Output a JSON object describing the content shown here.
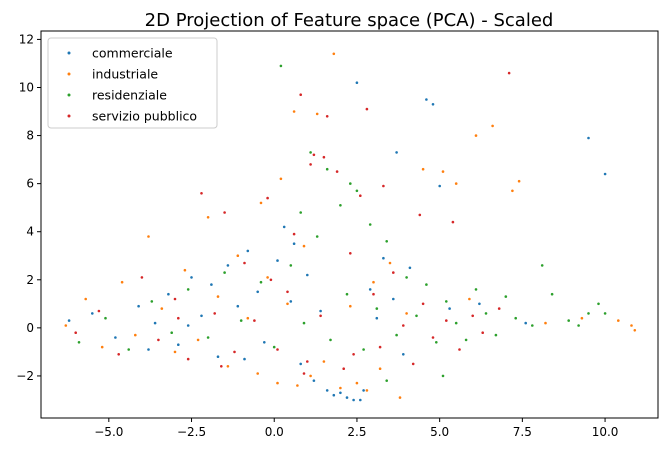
{
  "chart_data": {
    "type": "scatter",
    "title": "2D Projection of Feature space (PCA) - Scaled",
    "xlabel": "",
    "ylabel": "",
    "xlim": [
      -7.05,
      11.6
    ],
    "ylim": [
      -3.75,
      12.35
    ],
    "xticks": [
      -5.0,
      -2.5,
      0.0,
      2.5,
      5.0,
      7.5,
      10.0
    ],
    "xtick_labels": [
      "−5.0",
      "−2.5",
      "0.0",
      "2.5",
      "5.0",
      "7.5",
      "10.0"
    ],
    "yticks": [
      -2,
      0,
      2,
      4,
      6,
      8,
      10,
      12
    ],
    "ytick_labels": [
      "−2",
      "0",
      "2",
      "4",
      "6",
      "8",
      "10",
      "12"
    ],
    "grid": false,
    "legend_position": "top-left",
    "series": [
      {
        "name": "commerciale",
        "color": "#1f77b4",
        "points": [
          [
            -6.2,
            0.3
          ],
          [
            -5.5,
            0.6
          ],
          [
            -4.8,
            -0.4
          ],
          [
            -4.1,
            0.9
          ],
          [
            -3.6,
            0.2
          ],
          [
            -3.2,
            1.4
          ],
          [
            -2.9,
            -0.7
          ],
          [
            -2.5,
            2.1
          ],
          [
            -2.2,
            0.5
          ],
          [
            -1.9,
            1.8
          ],
          [
            -1.7,
            -1.2
          ],
          [
            -1.4,
            2.6
          ],
          [
            -1.1,
            0.9
          ],
          [
            -0.8,
            3.2
          ],
          [
            -0.5,
            1.5
          ],
          [
            -0.3,
            -0.6
          ],
          [
            0.1,
            2.8
          ],
          [
            0.3,
            4.2
          ],
          [
            0.5,
            1.1
          ],
          [
            0.8,
            -1.5
          ],
          [
            1.0,
            2.2
          ],
          [
            1.2,
            -2.2
          ],
          [
            1.4,
            0.7
          ],
          [
            1.6,
            -2.6
          ],
          [
            1.8,
            -2.8
          ],
          [
            2.0,
            -2.7
          ],
          [
            2.2,
            -2.9
          ],
          [
            2.4,
            -3.0
          ],
          [
            2.6,
            -3.0
          ],
          [
            2.7,
            -2.6
          ],
          [
            2.9,
            1.6
          ],
          [
            3.1,
            0.4
          ],
          [
            3.3,
            2.9
          ],
          [
            3.6,
            1.2
          ],
          [
            3.7,
            7.3
          ],
          [
            3.9,
            -1.1
          ],
          [
            4.1,
            2.5
          ],
          [
            4.6,
            9.5
          ],
          [
            4.8,
            9.3
          ],
          [
            5.0,
            5.9
          ],
          [
            5.3,
            0.8
          ],
          [
            6.2,
            1.0
          ],
          [
            7.6,
            0.2
          ],
          [
            9.5,
            7.9
          ],
          [
            10.0,
            6.4
          ],
          [
            2.5,
            10.2
          ],
          [
            -3.8,
            -0.9
          ],
          [
            -2.6,
            0.1
          ],
          [
            -0.9,
            -1.3
          ],
          [
            0.6,
            3.5
          ]
        ]
      },
      {
        "name": "industriale",
        "color": "#ff7f0e",
        "points": [
          [
            -6.3,
            0.1
          ],
          [
            -5.7,
            1.2
          ],
          [
            -5.2,
            -0.8
          ],
          [
            -4.6,
            1.9
          ],
          [
            -4.2,
            -0.3
          ],
          [
            -3.8,
            3.8
          ],
          [
            -3.4,
            0.8
          ],
          [
            -3.0,
            -1.0
          ],
          [
            -2.7,
            2.4
          ],
          [
            -2.3,
            -0.5
          ],
          [
            -2.0,
            4.6
          ],
          [
            -1.7,
            1.3
          ],
          [
            -1.4,
            -1.6
          ],
          [
            -1.1,
            3.0
          ],
          [
            -0.8,
            0.4
          ],
          [
            -0.5,
            -1.9
          ],
          [
            -0.2,
            2.1
          ],
          [
            0.1,
            -2.3
          ],
          [
            0.4,
            1.0
          ],
          [
            0.6,
            9.0
          ],
          [
            0.7,
            -2.4
          ],
          [
            0.9,
            3.4
          ],
          [
            1.1,
            -2.0
          ],
          [
            1.3,
            8.9
          ],
          [
            1.5,
            -1.4
          ],
          [
            1.8,
            11.4
          ],
          [
            2.0,
            -2.5
          ],
          [
            2.3,
            0.9
          ],
          [
            2.5,
            -2.3
          ],
          [
            2.8,
            -2.6
          ],
          [
            3.0,
            1.9
          ],
          [
            3.2,
            -1.7
          ],
          [
            3.5,
            2.7
          ],
          [
            3.8,
            -2.9
          ],
          [
            4.0,
            0.6
          ],
          [
            4.5,
            6.6
          ],
          [
            5.1,
            6.5
          ],
          [
            5.5,
            6.0
          ],
          [
            5.9,
            1.2
          ],
          [
            6.1,
            8.0
          ],
          [
            6.6,
            8.4
          ],
          [
            7.2,
            5.7
          ],
          [
            7.4,
            6.1
          ],
          [
            8.2,
            0.2
          ],
          [
            9.3,
            0.4
          ],
          [
            10.4,
            0.3
          ],
          [
            10.8,
            0.1
          ],
          [
            10.9,
            -0.1
          ],
          [
            0.2,
            6.2
          ],
          [
            -0.4,
            5.2
          ]
        ]
      },
      {
        "name": "residenziale",
        "color": "#2ca02c",
        "points": [
          [
            -5.9,
            -0.6
          ],
          [
            -5.1,
            0.4
          ],
          [
            -4.4,
            -0.9
          ],
          [
            -3.7,
            1.1
          ],
          [
            -3.1,
            -0.2
          ],
          [
            -2.6,
            1.6
          ],
          [
            -2.0,
            -0.4
          ],
          [
            -1.5,
            2.3
          ],
          [
            -1.0,
            0.3
          ],
          [
            -0.4,
            1.9
          ],
          [
            0.0,
            -0.8
          ],
          [
            0.2,
            10.9
          ],
          [
            0.5,
            2.6
          ],
          [
            0.9,
            0.2
          ],
          [
            1.1,
            7.3
          ],
          [
            1.3,
            3.8
          ],
          [
            1.7,
            -0.5
          ],
          [
            2.0,
            5.1
          ],
          [
            2.2,
            1.4
          ],
          [
            2.5,
            5.7
          ],
          [
            2.7,
            -0.9
          ],
          [
            2.9,
            4.3
          ],
          [
            3.1,
            0.8
          ],
          [
            3.4,
            3.6
          ],
          [
            3.7,
            -0.3
          ],
          [
            4.0,
            2.1
          ],
          [
            4.3,
            0.5
          ],
          [
            4.6,
            1.8
          ],
          [
            4.9,
            -0.6
          ],
          [
            5.2,
            1.1
          ],
          [
            5.5,
            0.2
          ],
          [
            5.8,
            -0.5
          ],
          [
            6.1,
            1.6
          ],
          [
            6.4,
            0.6
          ],
          [
            6.7,
            -0.3
          ],
          [
            7.0,
            1.3
          ],
          [
            7.3,
            0.4
          ],
          [
            7.8,
            0.1
          ],
          [
            8.1,
            2.6
          ],
          [
            8.4,
            1.4
          ],
          [
            8.9,
            0.3
          ],
          [
            9.2,
            0.1
          ],
          [
            9.5,
            0.6
          ],
          [
            9.8,
            1.0
          ],
          [
            10.0,
            0.6
          ],
          [
            5.1,
            -2.0
          ],
          [
            3.4,
            -2.2
          ],
          [
            2.3,
            6.0
          ],
          [
            1.6,
            6.6
          ],
          [
            0.8,
            4.8
          ]
        ]
      },
      {
        "name": "servizio pubblico",
        "color": "#d62728",
        "points": [
          [
            -6.0,
            -0.2
          ],
          [
            -5.3,
            0.7
          ],
          [
            -4.7,
            -1.1
          ],
          [
            -4.0,
            2.1
          ],
          [
            -3.5,
            -0.5
          ],
          [
            -3.0,
            1.2
          ],
          [
            -2.6,
            -1.3
          ],
          [
            -2.2,
            5.6
          ],
          [
            -1.8,
            0.6
          ],
          [
            -1.5,
            4.8
          ],
          [
            -1.2,
            -1.0
          ],
          [
            -0.9,
            2.7
          ],
          [
            -0.6,
            0.3
          ],
          [
            -0.2,
            5.4
          ],
          [
            0.1,
            -0.9
          ],
          [
            0.4,
            1.5
          ],
          [
            0.6,
            3.9
          ],
          [
            0.8,
            9.7
          ],
          [
            1.0,
            -1.4
          ],
          [
            1.2,
            7.2
          ],
          [
            1.4,
            0.5
          ],
          [
            1.6,
            8.8
          ],
          [
            1.9,
            6.5
          ],
          [
            2.1,
            -1.7
          ],
          [
            2.3,
            3.1
          ],
          [
            2.6,
            5.5
          ],
          [
            2.8,
            9.1
          ],
          [
            3.0,
            1.4
          ],
          [
            3.2,
            -0.8
          ],
          [
            3.6,
            2.3
          ],
          [
            3.9,
            0.1
          ],
          [
            4.2,
            -1.5
          ],
          [
            4.5,
            1.0
          ],
          [
            4.8,
            -0.4
          ],
          [
            5.2,
            0.3
          ],
          [
            5.6,
            -0.9
          ],
          [
            6.0,
            0.5
          ],
          [
            6.3,
            -0.2
          ],
          [
            6.8,
            0.8
          ],
          [
            7.1,
            10.6
          ],
          [
            1.5,
            7.1
          ],
          [
            1.1,
            6.8
          ],
          [
            -0.1,
            2.0
          ],
          [
            -2.9,
            0.4
          ],
          [
            -1.6,
            -1.6
          ],
          [
            0.9,
            -1.9
          ],
          [
            2.4,
            -1.1
          ],
          [
            3.3,
            5.9
          ],
          [
            4.4,
            4.7
          ],
          [
            5.4,
            4.4
          ]
        ]
      }
    ]
  }
}
